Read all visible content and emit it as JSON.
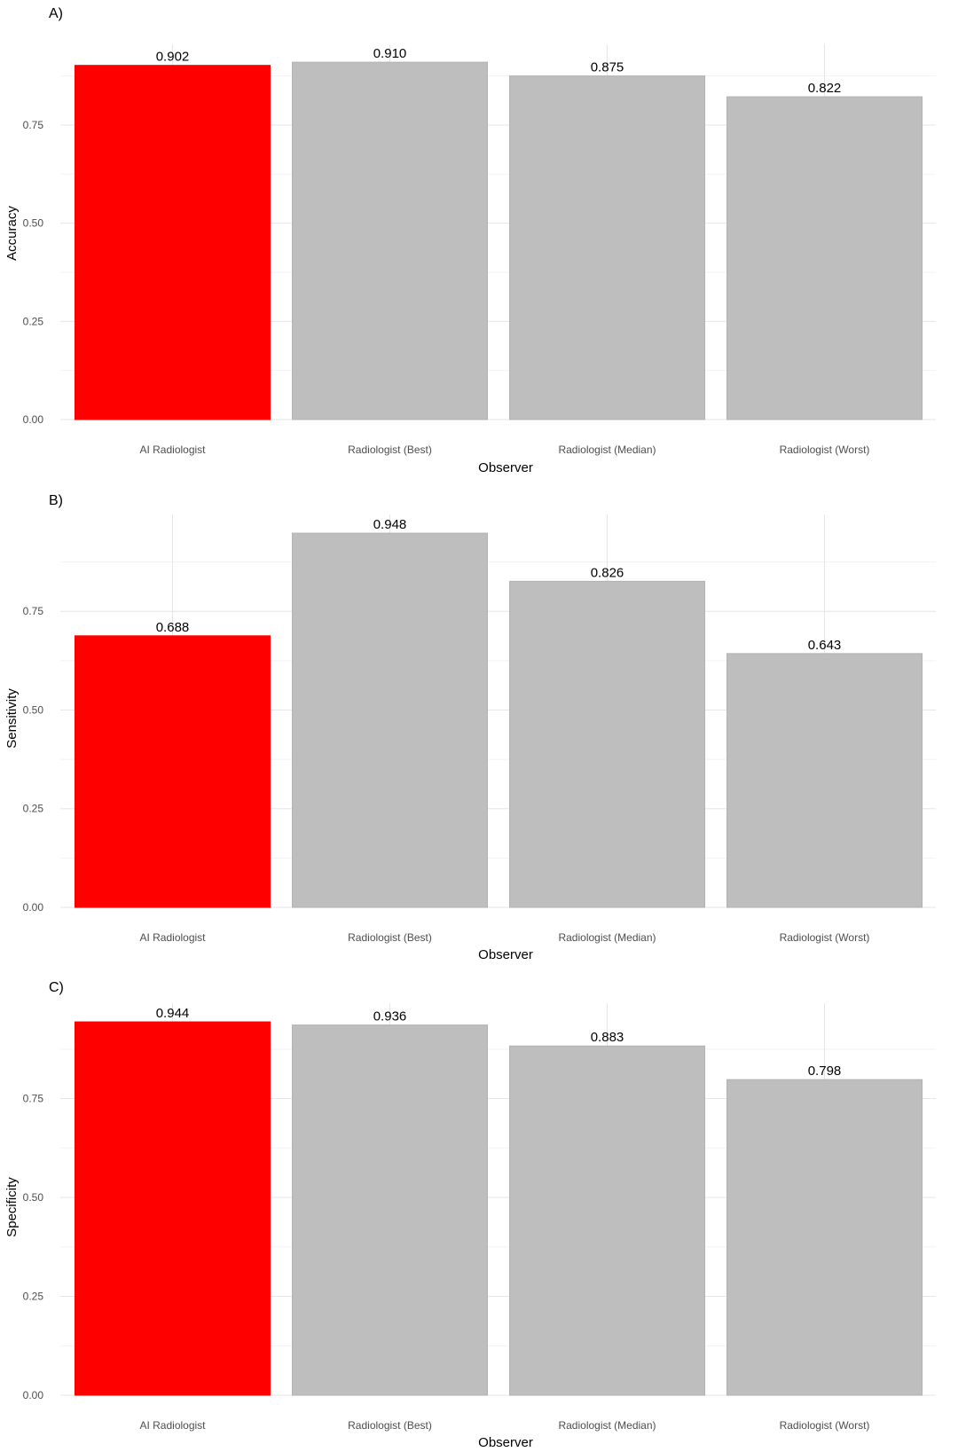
{
  "colors": {
    "highlight": "#ff0000",
    "default": "#bebebe",
    "bar_stroke": "#b2b2b2"
  },
  "chart_data": [
    {
      "panel": "A)",
      "type": "bar",
      "xlabel": "Observer",
      "ylabel": "Accuracy",
      "categories": [
        "AI Radiologist",
        "Radiologist (Best)",
        "Radiologist (Median)",
        "Radiologist (Worst)"
      ],
      "values": [
        0.902,
        0.91,
        0.875,
        0.822
      ],
      "value_labels": [
        "0.902",
        "0.910",
        "0.875",
        "0.822"
      ],
      "highlight_index": 0,
      "ylim": [
        0,
        0.9555
      ],
      "yticks": [
        0.0,
        0.25,
        0.5,
        0.75
      ],
      "ytick_labels": [
        "0.00",
        "0.25",
        "0.50",
        "0.75"
      ],
      "grid": true,
      "legend": "none"
    },
    {
      "panel": "B)",
      "type": "bar",
      "xlabel": "Observer",
      "ylabel": "Sensitivity",
      "categories": [
        "AI Radiologist",
        "Radiologist (Best)",
        "Radiologist (Median)",
        "Radiologist (Worst)"
      ],
      "values": [
        0.688,
        0.948,
        0.826,
        0.643
      ],
      "value_labels": [
        "0.688",
        "0.948",
        "0.826",
        "0.643"
      ],
      "highlight_index": 0,
      "ylim": [
        0,
        0.9954
      ],
      "yticks": [
        0.0,
        0.25,
        0.5,
        0.75
      ],
      "ytick_labels": [
        "0.00",
        "0.25",
        "0.50",
        "0.75"
      ],
      "grid": true,
      "legend": "none"
    },
    {
      "panel": "C)",
      "type": "bar",
      "xlabel": "Observer",
      "ylabel": "Specificity",
      "categories": [
        "AI Radiologist",
        "Radiologist (Best)",
        "Radiologist (Median)",
        "Radiologist (Worst)"
      ],
      "values": [
        0.944,
        0.936,
        0.883,
        0.798
      ],
      "value_labels": [
        "0.944",
        "0.936",
        "0.883",
        "0.798"
      ],
      "highlight_index": 0,
      "ylim": [
        0,
        0.9912
      ],
      "yticks": [
        0.0,
        0.25,
        0.5,
        0.75
      ],
      "ytick_labels": [
        "0.00",
        "0.25",
        "0.50",
        "0.75"
      ],
      "grid": true,
      "legend": "none"
    }
  ]
}
